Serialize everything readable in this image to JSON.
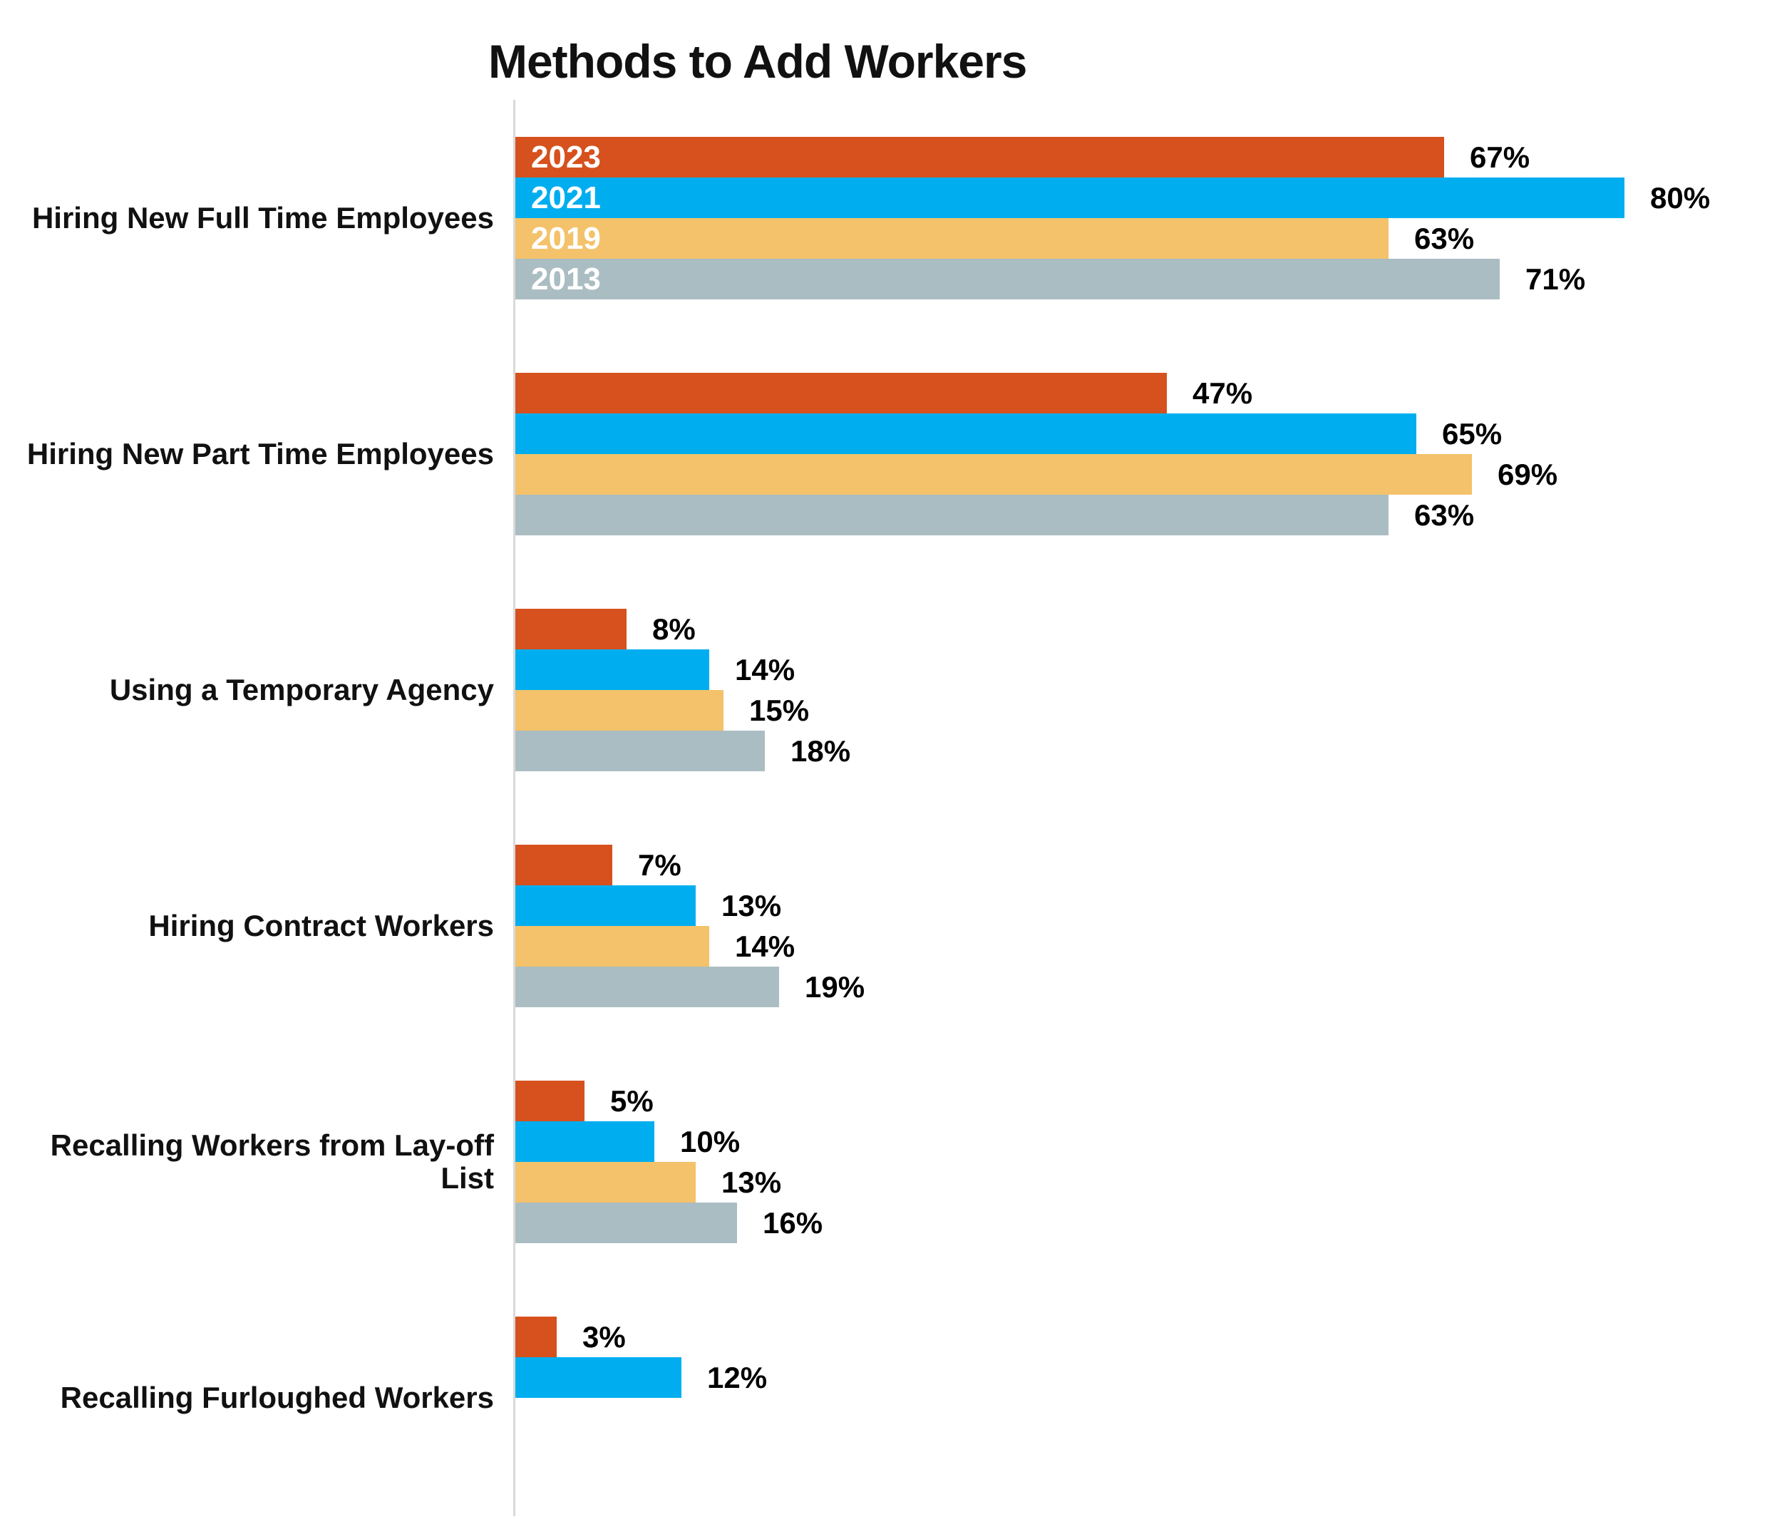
{
  "title": "Methods to Add Workers",
  "colors": {
    "background": "#FFFFFF",
    "axis_line": "#D9D9D9",
    "value_label_text": "#000000",
    "series_label_text": "#FFFFFF"
  },
  "chart_data": {
    "type": "bar",
    "orientation": "horizontal",
    "title": "Methods to Add Workers",
    "xlabel": "",
    "ylabel": "",
    "value_suffix": "%",
    "xlim": [
      0,
      91
    ],
    "grid": false,
    "legend_position": "labels-inside-first-group-bars",
    "series": [
      {
        "name": "2023",
        "color": "#D6511D"
      },
      {
        "name": "2021",
        "color": "#00AEEF"
      },
      {
        "name": "2019",
        "color": "#F3C26A"
      },
      {
        "name": "2013",
        "color": "#AABDC2"
      }
    ],
    "categories": [
      {
        "label": "Hiring New Full Time Employees",
        "show_series_labels": true,
        "values": [
          67,
          80,
          63,
          71
        ]
      },
      {
        "label": "Hiring New Part Time Employees",
        "show_series_labels": false,
        "values": [
          47,
          65,
          69,
          63
        ]
      },
      {
        "label": "Using a Temporary Agency",
        "show_series_labels": false,
        "values": [
          8,
          14,
          15,
          18
        ]
      },
      {
        "label": "Hiring Contract Workers",
        "show_series_labels": false,
        "values": [
          7,
          13,
          14,
          19
        ]
      },
      {
        "label": "Recalling Workers from Lay-off List",
        "show_series_labels": false,
        "values": [
          5,
          10,
          13,
          16
        ]
      },
      {
        "label": "Recalling Furloughed Workers",
        "show_series_labels": false,
        "values": [
          3,
          12,
          null,
          null
        ]
      }
    ]
  }
}
